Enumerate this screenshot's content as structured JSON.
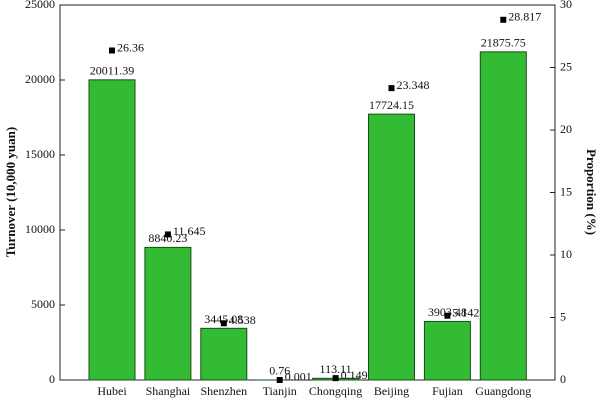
{
  "chart_data": {
    "type": "bar",
    "categories": [
      "Hubei",
      "Shanghai",
      "Shenzhen",
      "Tianjin",
      "Chongqing",
      "Beijing",
      "Fujian",
      "Guangdong"
    ],
    "series": [
      {
        "name": "Turnover",
        "type": "bar",
        "color": "#33bb33",
        "values": [
          20011.39,
          8840.23,
          3445.08,
          0.76,
          113.11,
          17724.15,
          3903.48,
          21875.75
        ]
      },
      {
        "name": "Proportion",
        "type": "scatter",
        "axis": "y2",
        "color": "#000000",
        "values": [
          26.36,
          11.645,
          4.538,
          0.001,
          0.149,
          23.348,
          5.142,
          28.817
        ]
      }
    ],
    "ylabel": "Turnover (10,000 yuan)",
    "y2label": "Proportion (%)",
    "ylim": [
      0,
      25000
    ],
    "yticks": [
      0,
      5000,
      10000,
      15000,
      20000,
      25000
    ],
    "y2lim": [
      0,
      30
    ],
    "y2ticks": [
      0,
      5,
      10,
      15,
      20,
      25,
      30
    ],
    "grid": false
  }
}
